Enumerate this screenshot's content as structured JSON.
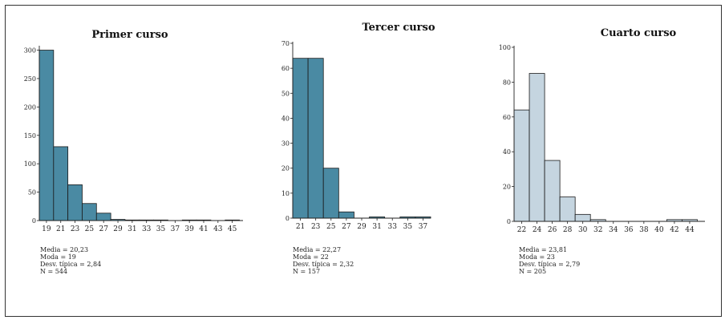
{
  "chart_data": [
    {
      "type": "bar",
      "title": "Primer curso",
      "bin_edges": [
        18,
        20,
        22,
        24,
        26,
        28,
        30,
        32,
        34,
        36,
        38,
        40,
        42,
        44,
        46
      ],
      "values": [
        300,
        130,
        63,
        30,
        13,
        2,
        1,
        1,
        1,
        0,
        1,
        1,
        0,
        1
      ],
      "xticks": [
        "19",
        "21",
        "23",
        "25",
        "27",
        "29",
        "31",
        "33",
        "35",
        "37",
        "39",
        "41",
        "43",
        "45"
      ],
      "yticks": [
        "0",
        "50",
        "100",
        "150",
        "200",
        "250",
        "300"
      ],
      "ylim": [
        0,
        305
      ],
      "bar_color": "#4a8aa3",
      "stats": [
        "Media = 20,23",
        "Moda = 19",
        "Desv. típica = 2,84",
        "N = 544"
      ]
    },
    {
      "type": "bar",
      "title": "Tercer curso",
      "bin_edges": [
        20,
        22,
        24,
        26,
        28,
        30,
        32,
        34,
        36,
        38
      ],
      "values": [
        64,
        64,
        20,
        2.5,
        0,
        0.5,
        0,
        0.5,
        0.5
      ],
      "xticks": [
        "21",
        "23",
        "25",
        "27",
        "29",
        "31",
        "33",
        "35",
        "37"
      ],
      "yticks": [
        "0",
        "10",
        "20",
        "30",
        "40",
        "50",
        "60",
        "70"
      ],
      "ylim": [
        0,
        70
      ],
      "bar_color": "#4a8aa3",
      "stats": [
        "Media = 22,27",
        "Moda = 22",
        "Desv. típica = 2,32",
        "N = 157"
      ]
    },
    {
      "type": "bar",
      "title": "Cuarto curso",
      "bin_edges": [
        21,
        23,
        25,
        27,
        29,
        31,
        33,
        35,
        37,
        39,
        41,
        43,
        45
      ],
      "values": [
        64,
        85,
        35,
        14,
        4,
        1,
        0,
        0,
        0,
        0,
        1,
        1
      ],
      "xticks": [
        "22",
        "24",
        "26",
        "28",
        "30",
        "32",
        "34",
        "36",
        "38",
        "40",
        "42",
        "44"
      ],
      "yticks": [
        "0",
        "20",
        "40",
        "60",
        "80",
        "100"
      ],
      "ylim": [
        0,
        100
      ],
      "bar_color": "#c5d5e0",
      "stats": [
        "Media = 23,81",
        "Moda = 23",
        "Desv. típica = 2,79",
        "N = 205"
      ]
    }
  ]
}
